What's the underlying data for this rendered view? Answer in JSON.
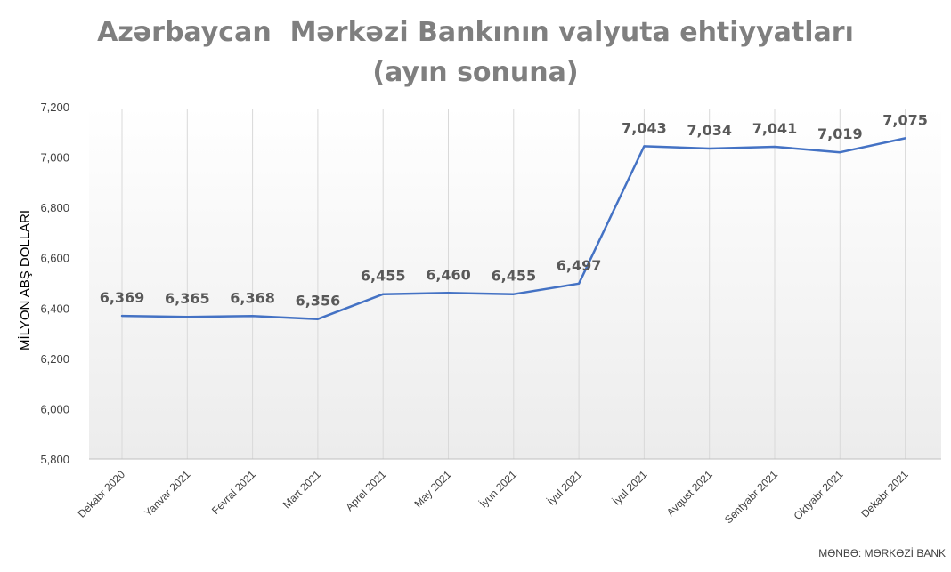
{
  "chart_data": {
    "type": "line",
    "title": "Azərbaycan  Mərkəzi Bankının valyuta ehtiyyatları",
    "subtitle": "(ayın sonuna)",
    "xlabel": "",
    "ylabel": "MİLYON ABŞ DOLLARI",
    "ylim": [
      5800,
      7200
    ],
    "yticks": [
      5800,
      6000,
      6200,
      6400,
      6600,
      6800,
      7000,
      7200
    ],
    "ytick_labels": [
      "5,800",
      "6,000",
      "6,200",
      "6,400",
      "6,600",
      "6,800",
      "7,000",
      "7,200"
    ],
    "categories": [
      "Dekabr 2020",
      "Yanvar 2021",
      "Fevral 2021",
      "Mart 2021",
      "Aprel 2021",
      "May 2021",
      "İyun 2021",
      "İyul 2021",
      "İyul 2021",
      "Avqust 2021",
      "Sentyabr 2021",
      "Oktyabr 2021",
      "Dekabr 2021"
    ],
    "values": [
      6369,
      6365,
      6368,
      6356,
      6455,
      6460,
      6455,
      6497,
      7043,
      7034,
      7041,
      7019,
      7075
    ],
    "data_labels": [
      "6,369",
      "6,365",
      "6,368",
      "6,356",
      "6,455",
      "6,460",
      "6,455",
      "6,497",
      "7,043",
      "7,034",
      "7,041",
      "7,019",
      "7,075"
    ],
    "grid": "vertical",
    "line_color": "#4472c4",
    "source": "MƏNBƏ: MƏRKƏZİ BANK"
  }
}
